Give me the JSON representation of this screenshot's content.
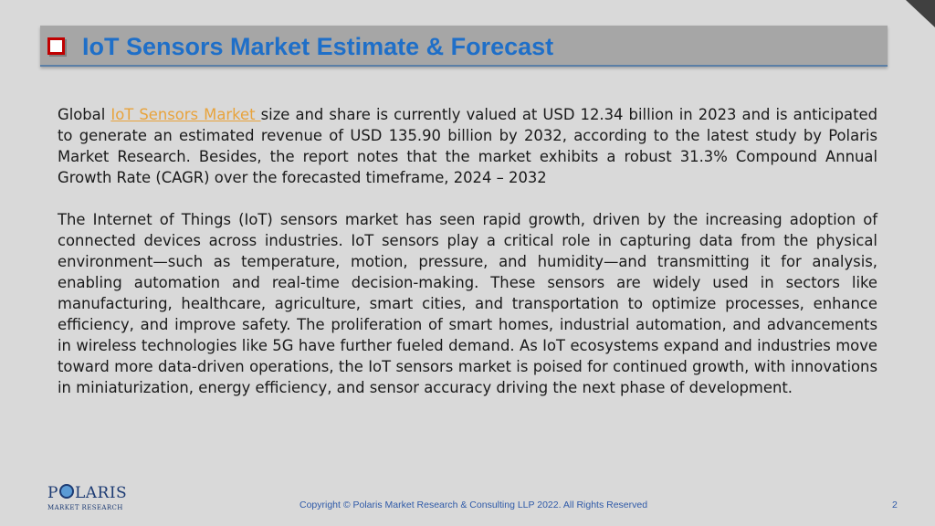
{
  "slide": {
    "title": "IoT Sensors Market Estimate & Forecast",
    "paragraph1": {
      "prefix": "Global ",
      "link_text": "IoT Sensors Market ",
      "suffix": "size and share is currently valued at USD 12.34 billion in 2023 and is anticipated to generate an estimated revenue of USD 135.90 billion by 2032, according to the latest study by Polaris Market Research. Besides, the report notes that the market exhibits a robust 31.3% Compound Annual Growth Rate (CAGR) over the forecasted timeframe, 2024 – 2032"
    },
    "paragraph2": "The Internet of Things (IoT) sensors market has seen rapid growth, driven by the increasing adoption of connected devices across industries. IoT sensors play a critical role in capturing data from the physical environment—such as temperature, motion, pressure, and humidity—and transmitting it for analysis, enabling automation and real-time decision-making. These sensors are widely used in sectors like manufacturing, healthcare, agriculture, smart cities, and transportation to optimize processes, enhance efficiency, and improve safety. The proliferation of smart homes, industrial automation, and advancements in wireless technologies like 5G have further fueled demand. As IoT ecosystems expand and industries move toward more data-driven operations, the IoT sensors market is poised for continued growth, with innovations in miniaturization, energy efficiency, and sensor accuracy driving the next phase of development.",
    "logo": {
      "name_left": "P",
      "name_right": "LARIS",
      "subtitle": "MARKET RESEARCH"
    },
    "footer": "Copyright © Polaris Market Research & Consulting LLP 2022. All Rights Reserved",
    "page_number": "2"
  },
  "colors": {
    "background": "#d9d9d9",
    "title_bar": "#a6a6a6",
    "title_text": "#1f6fc8",
    "checkbox_border": "#c00000",
    "link": "#e8a33c",
    "footer_text": "#2f5aa8",
    "corner_triangle": "#404040"
  },
  "icons": {
    "corner": "corner-fold-triangle-icon",
    "title_bullet": "checkbox-bullet-icon"
  }
}
